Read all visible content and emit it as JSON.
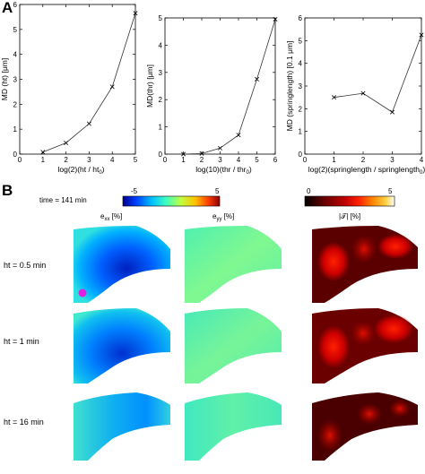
{
  "panel_a_label": "A",
  "panel_b_label": "B",
  "chart_data": [
    {
      "type": "line",
      "x": [
        1,
        2,
        3,
        4,
        5
      ],
      "y": [
        0.08,
        0.45,
        1.22,
        2.7,
        5.65
      ],
      "xlabel": "log(2)(ht / ht",
      "xlabel_sub": "0",
      "xlabel_end": ")",
      "ylabel": "MD (ht) [μm]",
      "xlim": [
        0,
        5
      ],
      "ylim": [
        0,
        6
      ],
      "xticks": [
        0,
        1,
        2,
        3,
        4,
        5
      ],
      "yticks": [
        0,
        1,
        2,
        3,
        4,
        5,
        6
      ],
      "marker": "x"
    },
    {
      "type": "line",
      "x": [
        1,
        2,
        3,
        4,
        5,
        6
      ],
      "y": [
        0.0,
        0.02,
        0.22,
        0.7,
        2.75,
        4.95
      ],
      "xlabel": "log(10)(thr / thr",
      "xlabel_sub": "0",
      "xlabel_end": ")",
      "ylabel": "MD(thr) [μm]",
      "xlim": [
        0,
        6
      ],
      "ylim": [
        0,
        5
      ],
      "xticks": [
        0,
        1,
        2,
        3,
        4,
        5,
        6
      ],
      "yticks": [
        0,
        1,
        2,
        3,
        4,
        5
      ],
      "marker": "x"
    },
    {
      "type": "line",
      "x": [
        1,
        2,
        3,
        4
      ],
      "y": [
        2.5,
        2.68,
        1.85,
        5.25
      ],
      "xlabel": "log(2)(springlength / springlength",
      "xlabel_sub": "0",
      "xlabel_end": ")",
      "ylabel": "MD (springlength) [0.1 μm]",
      "xlim": [
        0,
        4
      ],
      "ylim": [
        0,
        6
      ],
      "xticks": [
        0,
        1,
        2,
        3,
        4
      ],
      "yticks": [
        0,
        1,
        2,
        3,
        4,
        5,
        6
      ],
      "marker": "x"
    }
  ],
  "panel_b": {
    "time_label": "time = 141 min",
    "colorbar_strain": {
      "min_label": "-5",
      "max_label": "5",
      "colors": [
        "#00008f",
        "#0040ff",
        "#00c0ff",
        "#40ffbf",
        "#c0ff40",
        "#ffc000",
        "#ff4000",
        "#8f0000"
      ]
    },
    "colorbar_abs": {
      "min_label": "0",
      "max_label": "5",
      "colors": [
        "#000000",
        "#600000",
        "#c00000",
        "#ff2000",
        "#ff8000",
        "#ffd040",
        "#ffffff"
      ]
    },
    "column_labels": {
      "exx_main": "e",
      "exx_sub": "xx",
      "exx_unit": " [%]",
      "eyy_main": "e",
      "eyy_sub": "yy",
      "eyy_unit": " [%]",
      "abs_label": "|𝒯| [%]"
    },
    "rows": [
      {
        "label": "ht = 0.5 min"
      },
      {
        "label": "ht = 1 min"
      },
      {
        "label": "ht = 16 min"
      }
    ],
    "marker_color": "#e020e0"
  }
}
